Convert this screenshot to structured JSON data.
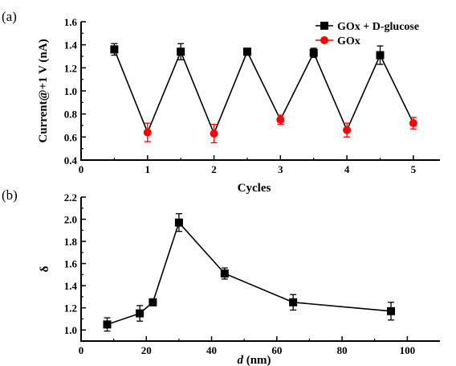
{
  "chart_data": [
    {
      "panel_label": "(a)",
      "type": "line",
      "xlabel": "Cycles",
      "ylabel": "Current@+1 V (nA)",
      "xlim": [
        0,
        5.4
      ],
      "ylim": [
        0.4,
        1.6
      ],
      "xticks": [
        0,
        1,
        2,
        3,
        4,
        5
      ],
      "yticks": [
        0.4,
        0.6,
        0.8,
        1.0,
        1.2,
        1.4,
        1.6
      ],
      "ytick_decimals": 1,
      "legend_position": "top-right",
      "joined_line": {
        "color": "#000000",
        "x": [
          0.5,
          1,
          1.5,
          2,
          2.5,
          3,
          3.5,
          4,
          4.5,
          5
        ],
        "y": [
          1.36,
          0.64,
          1.34,
          0.63,
          1.34,
          0.75,
          1.33,
          0.66,
          1.31,
          0.72
        ]
      },
      "series": [
        {
          "name": "GOx + D-glucose",
          "marker": "square",
          "color": "#000000",
          "x": [
            0.5,
            1.5,
            2.5,
            3.5,
            4.5
          ],
          "y": [
            1.36,
            1.34,
            1.34,
            1.33,
            1.31
          ],
          "err": [
            0.05,
            0.07,
            0.03,
            0.04,
            0.08
          ]
        },
        {
          "name": "GOx",
          "marker": "circle",
          "color": "#ff0000",
          "x": [
            1,
            2,
            3,
            4,
            5
          ],
          "y": [
            0.64,
            0.63,
            0.75,
            0.66,
            0.72
          ],
          "err": [
            0.08,
            0.08,
            0.04,
            0.06,
            0.05
          ]
        }
      ]
    },
    {
      "panel_label": "(b)",
      "type": "line",
      "xlabel": "d (nm)",
      "ylabel": "δ",
      "xlim": [
        0,
        110
      ],
      "ylim": [
        0.9,
        2.2
      ],
      "xticks": [
        0,
        20,
        40,
        60,
        80,
        100
      ],
      "yticks": [
        1.0,
        1.2,
        1.4,
        1.6,
        1.8,
        2.0,
        2.2
      ],
      "ytick_decimals": 1,
      "series": [
        {
          "marker": "square",
          "color": "#000000",
          "x": [
            8,
            18,
            22,
            30,
            44,
            65,
            95
          ],
          "y": [
            1.05,
            1.15,
            1.25,
            1.97,
            1.51,
            1.25,
            1.17
          ],
          "err": [
            0.06,
            0.07,
            0.03,
            0.08,
            0.05,
            0.07,
            0.08
          ]
        }
      ]
    }
  ]
}
